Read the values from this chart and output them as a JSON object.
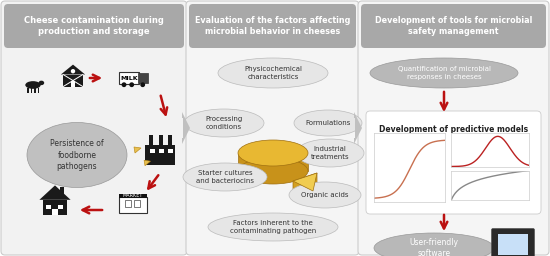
{
  "panel1": {
    "title": "Cheese contamination during\nproduction and storage",
    "title_bg": "#a8a8a8",
    "bg": "#f2f2f2",
    "oval_text": "Persistence of\nfoodborne\npathogens",
    "oval_color": "#c0c0c0"
  },
  "panel2": {
    "title": "Evaluation of the factors affecting\nmicrobial behavior in cheeses",
    "title_bg": "#a8a8a8",
    "bg": "#f5f5f5",
    "oval_color": "#e8e8e8"
  },
  "panel3": {
    "title": "Development of tools for microbial\nsafety management",
    "title_bg": "#a8a8a8",
    "bg": "#f5f5f5",
    "oval1_text": "Quantification of microbial\nresponses in cheeses",
    "oval2_text": "User-friendly\nsoftware",
    "models_text": "Development of predictive models",
    "oval_color": "#b0b0b0"
  },
  "arrow_color": "#bb1111",
  "connector_color": "#b8b8b8",
  "text_color": "#333333",
  "border_color": "#cccccc",
  "fig_bg": "#ffffff"
}
